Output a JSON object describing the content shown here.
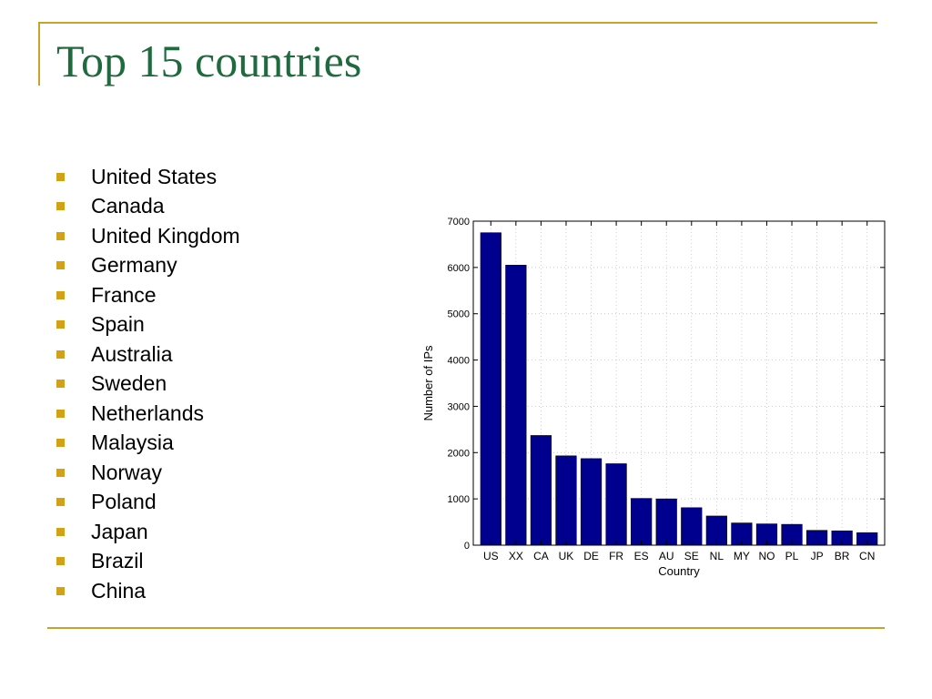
{
  "slide": {
    "title": "Top 15 countries",
    "bullet_color": "#d4a017",
    "title_color": "#1f6a3e",
    "rule_color": "#c9a227",
    "bullets": [
      "United States",
      "Canada",
      "United Kingdom",
      "Germany",
      "France",
      "Spain",
      "Australia",
      "Sweden",
      "Netherlands",
      "Malaysia",
      "Norway",
      "Poland",
      "Japan",
      "Brazil",
      "China"
    ]
  },
  "chart_data": {
    "type": "bar",
    "categories": [
      "US",
      "XX",
      "CA",
      "UK",
      "DE",
      "FR",
      "ES",
      "AU",
      "SE",
      "NL",
      "MY",
      "NO",
      "PL",
      "JP",
      "BR",
      "CN"
    ],
    "values": [
      6750,
      6050,
      2370,
      1930,
      1870,
      1760,
      1010,
      1000,
      810,
      630,
      480,
      460,
      450,
      320,
      310,
      270
    ],
    "xlabel": "Country",
    "ylabel": "Number of IPs",
    "ylim": [
      0,
      7000
    ],
    "yticks": [
      0,
      1000,
      2000,
      3000,
      4000,
      5000,
      6000,
      7000
    ],
    "grid": true,
    "bar_color": "#00008f"
  }
}
